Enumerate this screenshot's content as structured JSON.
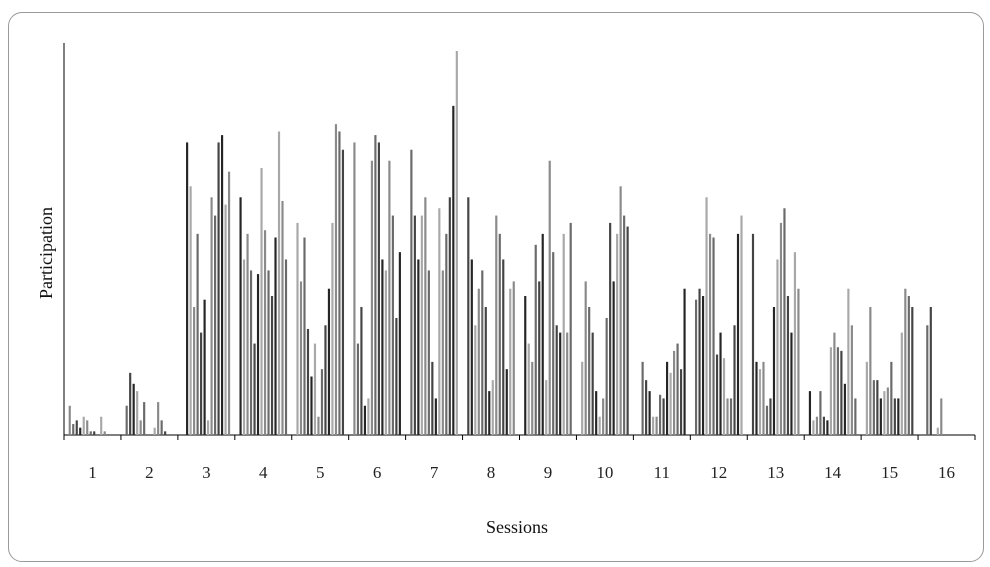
{
  "chart_data": {
    "type": "bar",
    "title": "",
    "xlabel": "Sessions",
    "ylabel": "Participation",
    "grid": false,
    "legend": "none",
    "ylim": [
      0,
      105
    ],
    "categories": [
      "1",
      "2",
      "3",
      "4",
      "5",
      "6",
      "7",
      "8",
      "9",
      "10",
      "11",
      "12",
      "13",
      "14",
      "15",
      "16"
    ],
    "series_colors": [
      "#8a8a8a",
      "#6a6a6a",
      "#444444",
      "#252525",
      "#a8a8a8"
    ],
    "bars_per_session": [
      [
        8,
        3,
        4,
        2,
        5,
        4,
        1,
        1,
        0,
        5,
        1,
        0,
        0,
        0
      ],
      [
        8,
        17,
        14,
        12,
        4,
        9,
        0,
        0,
        2,
        9,
        4,
        1,
        0,
        0
      ],
      [
        0,
        80,
        68,
        35,
        55,
        28,
        37,
        4,
        65,
        60,
        80,
        82,
        63,
        72
      ],
      [
        65,
        48,
        55,
        45,
        25,
        44,
        73,
        56,
        45,
        38,
        54,
        83,
        64,
        48
      ],
      [
        58,
        42,
        54,
        29,
        16,
        25,
        5,
        18,
        30,
        40,
        58,
        85,
        83,
        78
      ],
      [
        80,
        25,
        35,
        8,
        10,
        75,
        82,
        80,
        48,
        45,
        75,
        60,
        32,
        50
      ],
      [
        78,
        60,
        48,
        60,
        65,
        45,
        20,
        10,
        62,
        45,
        55,
        65,
        90,
        105
      ],
      [
        65,
        48,
        30,
        40,
        45,
        35,
        12,
        15,
        60,
        55,
        48,
        18,
        40,
        42
      ],
      [
        38,
        25,
        20,
        52,
        42,
        55,
        15,
        75,
        50,
        30,
        28,
        55,
        28,
        58
      ],
      [
        20,
        42,
        35,
        28,
        12,
        5,
        10,
        32,
        58,
        42,
        55,
        68,
        60,
        57
      ],
      [
        0,
        20,
        15,
        12,
        5,
        5,
        11,
        10,
        20,
        17,
        23,
        25,
        18,
        40
      ],
      [
        37,
        40,
        38,
        65,
        55,
        54,
        22,
        28,
        21,
        10,
        10,
        30,
        55,
        60
      ],
      [
        55,
        20,
        18,
        20,
        8,
        10,
        35,
        48,
        58,
        62,
        38,
        28,
        50,
        40
      ],
      [
        12,
        4,
        5,
        12,
        5,
        4,
        24,
        28,
        24,
        23,
        14,
        40,
        30,
        10
      ],
      [
        20,
        35,
        15,
        15,
        10,
        12,
        13,
        20,
        10,
        10,
        28,
        40,
        38,
        35
      ],
      [
        0,
        30,
        35,
        0,
        2,
        10,
        0,
        0,
        0,
        0,
        0,
        0,
        0,
        0
      ]
    ]
  }
}
